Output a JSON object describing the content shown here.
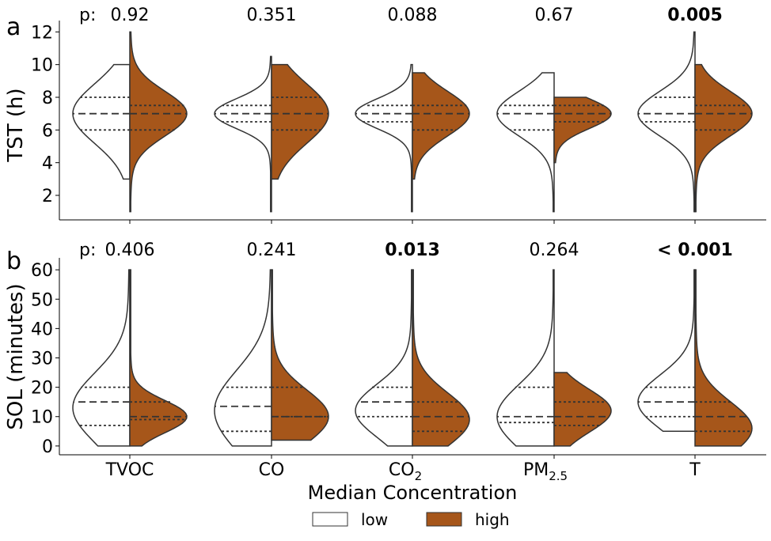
{
  "figure": {
    "xlabel": "Median Concentration",
    "categories": [
      "TVOC",
      "CO",
      "CO",
      "PM",
      "T"
    ],
    "category_subscripts": [
      "",
      "",
      "2",
      "2.5",
      ""
    ],
    "legend": {
      "labels": [
        "low",
        "high"
      ],
      "placement": "bottom-center",
      "colors": [
        "#ffffff",
        "#a6561a"
      ]
    },
    "colors": {
      "low": "#ffffff",
      "high": "#a6561a",
      "outline": "#333333"
    }
  },
  "chart_data": [
    {
      "type": "violin",
      "panel": "a",
      "ylabel": "TST (h)",
      "ylim": [
        0.5,
        12.5
      ],
      "yticks": [
        2,
        4,
        6,
        8,
        10,
        12
      ],
      "p_prefix": "p:",
      "p_values": [
        "0.92",
        "0.351",
        "0.088",
        "0.67",
        "0.005"
      ],
      "p_bold": [
        false,
        false,
        false,
        false,
        true
      ],
      "categories": [
        "TVOC",
        "CO",
        "CO2",
        "PM2.5",
        "T"
      ],
      "series": [
        {
          "name": "low",
          "quartiles": [
            [
              6.0,
              7.0,
              8.0
            ],
            [
              6.5,
              7.0,
              7.5
            ],
            [
              6.5,
              7.0,
              7.5
            ],
            [
              6.0,
              7.0,
              7.5
            ],
            [
              6.5,
              7.0,
              8.0
            ]
          ],
          "range": [
            [
              3.0,
              10.0
            ],
            [
              1.0,
              10.5
            ],
            [
              1.0,
              10.0
            ],
            [
              1.0,
              9.5
            ],
            [
              1.0,
              12.0
            ]
          ],
          "mode": [
            7.0,
            7.0,
            7.0,
            7.0,
            7.0
          ]
        },
        {
          "name": "high",
          "quartiles": [
            [
              6.0,
              7.0,
              7.5
            ],
            [
              6.0,
              7.0,
              8.0
            ],
            [
              6.0,
              7.0,
              7.5
            ],
            [
              6.5,
              7.0,
              7.5
            ],
            [
              6.0,
              7.0,
              7.5
            ]
          ],
          "range": [
            [
              1.0,
              12.0
            ],
            [
              3.0,
              10.0
            ],
            [
              3.0,
              9.5
            ],
            [
              4.0,
              8.0
            ],
            [
              1.0,
              10.0
            ]
          ],
          "mode": [
            7.0,
            7.0,
            7.0,
            7.0,
            7.0
          ]
        }
      ]
    },
    {
      "type": "violin",
      "panel": "b",
      "ylabel": "SOL (minutes)",
      "ylim": [
        -3,
        63
      ],
      "yticks": [
        0,
        10,
        20,
        30,
        40,
        50,
        60
      ],
      "p_prefix": "p:",
      "p_values": [
        "0.406",
        "0.241",
        "0.013",
        "0.264",
        "< 0.001"
      ],
      "p_bold": [
        false,
        false,
        true,
        false,
        true
      ],
      "categories": [
        "TVOC",
        "CO",
        "CO2",
        "PM2.5",
        "T"
      ],
      "series": [
        {
          "name": "low",
          "quartiles": [
            [
              7,
              15,
              20
            ],
            [
              5,
              13.5,
              20
            ],
            [
              10,
              15,
              20
            ],
            [
              8,
              10,
              20
            ],
            [
              10,
              15,
              20
            ]
          ],
          "range": [
            [
              0,
              60
            ],
            [
              0,
              60
            ],
            [
              0,
              60
            ],
            [
              0,
              60
            ],
            [
              5,
              60
            ]
          ],
          "mode": [
            13,
            12,
            12,
            10,
            15
          ]
        },
        {
          "name": "high",
          "quartiles": [
            [
              9,
              10,
              15
            ],
            [
              10,
              10,
              20
            ],
            [
              5,
              10,
              15
            ],
            [
              7,
              10,
              15
            ],
            [
              5,
              10,
              15
            ]
          ],
          "range": [
            [
              0,
              60
            ],
            [
              2,
              60
            ],
            [
              0,
              60
            ],
            [
              0,
              25
            ],
            [
              0,
              60
            ]
          ],
          "mode": [
            10,
            10,
            9,
            12,
            6
          ]
        }
      ]
    }
  ]
}
